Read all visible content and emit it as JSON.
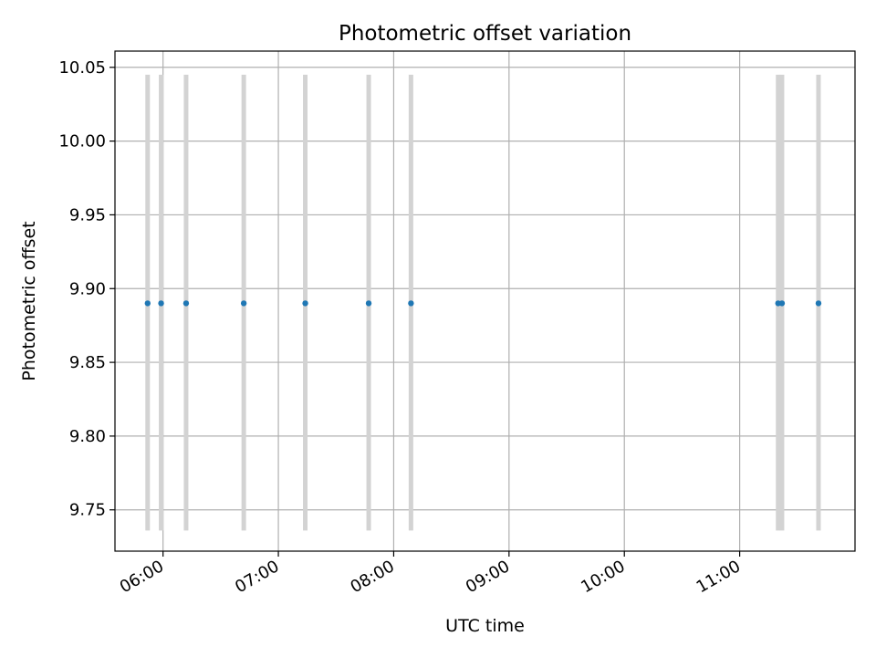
{
  "chart_data": {
    "type": "scatter",
    "title": "Photometric offset variation",
    "xlabel": "UTC time",
    "ylabel": "Photometric offset",
    "x_axis_type": "time",
    "xlim": [
      "05:35",
      "12:00"
    ],
    "ylim": [
      9.722,
      10.061
    ],
    "x_ticks": [
      "06:00",
      "07:00",
      "08:00",
      "09:00",
      "10:00",
      "11:00"
    ],
    "y_ticks": [
      9.75,
      9.8,
      9.85,
      9.9,
      9.95,
      10.0,
      10.05
    ],
    "y_tick_labels": [
      "9.75",
      "9.80",
      "9.85",
      "9.90",
      "9.95",
      "10.00",
      "10.05"
    ],
    "grid": true,
    "series": [
      {
        "color": "#1f77b4",
        "errorbar_color": "#d3d3d3",
        "points": [
          {
            "x": "05:52",
            "y": 9.89,
            "yerr_low": 9.736,
            "yerr_high": 10.045
          },
          {
            "x": "05:59",
            "y": 9.89,
            "yerr_low": 9.736,
            "yerr_high": 10.045
          },
          {
            "x": "06:12",
            "y": 9.89,
            "yerr_low": 9.736,
            "yerr_high": 10.045
          },
          {
            "x": "06:42",
            "y": 9.89,
            "yerr_low": 9.736,
            "yerr_high": 10.045
          },
          {
            "x": "07:14",
            "y": 9.89,
            "yerr_low": 9.736,
            "yerr_high": 10.045
          },
          {
            "x": "07:47",
            "y": 9.89,
            "yerr_low": 9.736,
            "yerr_high": 10.045
          },
          {
            "x": "08:09",
            "y": 9.89,
            "yerr_low": 9.736,
            "yerr_high": 10.045
          },
          {
            "x": "11:20",
            "y": 9.89,
            "yerr_low": 9.736,
            "yerr_high": 10.045
          },
          {
            "x": "11:22",
            "y": 9.89,
            "yerr_low": 9.736,
            "yerr_high": 10.045
          },
          {
            "x": "11:41",
            "y": 9.89,
            "yerr_low": 9.736,
            "yerr_high": 10.045
          }
        ]
      }
    ]
  }
}
